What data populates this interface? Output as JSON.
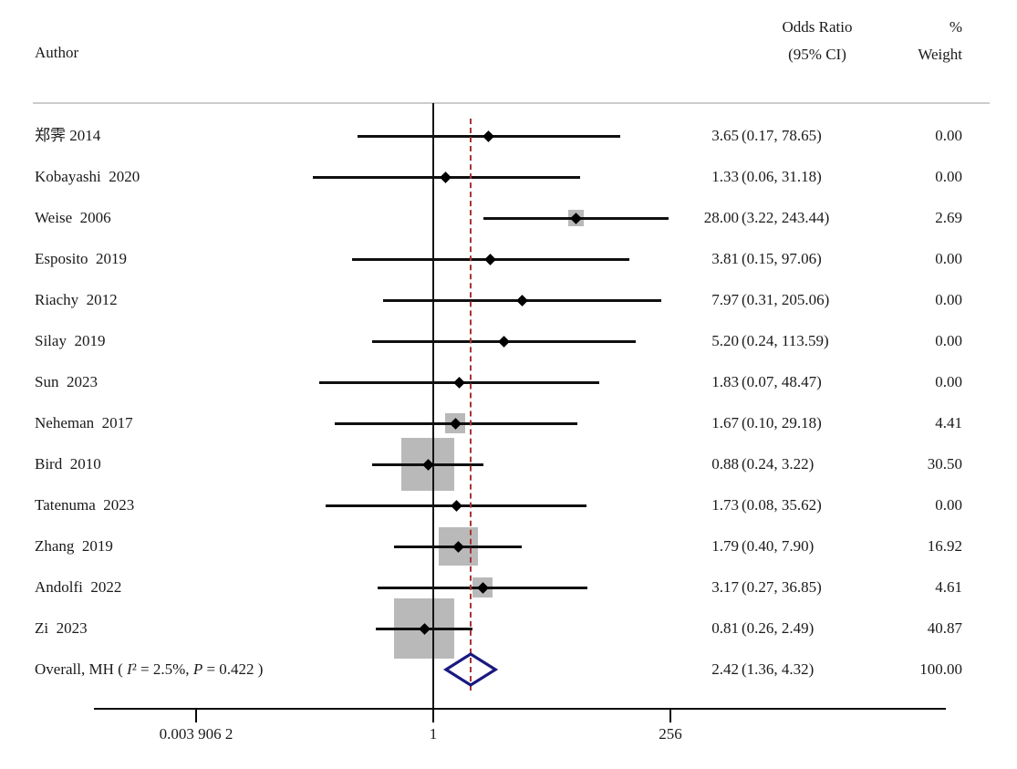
{
  "header": {
    "author": "Author",
    "or_line1": "Odds Ratio",
    "or_line2": "(95% CI)",
    "weight_line1": "%",
    "weight_line2": "Weight"
  },
  "chart_data": {
    "type": "forest",
    "effect_measure": "Odds Ratio",
    "x_axis": {
      "scale": "log2",
      "ticks": [
        {
          "label": "0.003 906 2",
          "value": 0.0039062
        },
        {
          "label": "1",
          "value": 1
        },
        {
          "label": "256",
          "value": 256
        }
      ]
    },
    "null_line_value": 1,
    "dashed_line_value": 2.42,
    "studies": [
      {
        "author": "郑霁 2014",
        "or": 3.65,
        "ci_low": 0.17,
        "ci_high": 78.65,
        "weight": 0,
        "or_text": "3.65",
        "ci_text": "(0.17, 78.65)",
        "weight_text": "0.00"
      },
      {
        "author": "Kobayashi  2020",
        "or": 1.33,
        "ci_low": 0.06,
        "ci_high": 31.18,
        "weight": 0,
        "or_text": "1.33",
        "ci_text": "(0.06, 31.18)",
        "weight_text": "0.00"
      },
      {
        "author": "Weise  2006",
        "or": 28.0,
        "ci_low": 3.22,
        "ci_high": 243.44,
        "weight": 2.69,
        "or_text": "28.00",
        "ci_text": "(3.22, 243.44)",
        "weight_text": "2.69"
      },
      {
        "author": "Esposito  2019",
        "or": 3.81,
        "ci_low": 0.15,
        "ci_high": 97.06,
        "weight": 0,
        "or_text": "3.81",
        "ci_text": "(0.15, 97.06)",
        "weight_text": "0.00"
      },
      {
        "author": "Riachy  2012",
        "or": 7.97,
        "ci_low": 0.31,
        "ci_high": 205.06,
        "weight": 0,
        "or_text": "7.97",
        "ci_text": "(0.31, 205.06)",
        "weight_text": "0.00"
      },
      {
        "author": "Silay  2019",
        "or": 5.2,
        "ci_low": 0.24,
        "ci_high": 113.59,
        "weight": 0,
        "or_text": "5.20",
        "ci_text": "(0.24, 113.59)",
        "weight_text": "0.00"
      },
      {
        "author": "Sun  2023",
        "or": 1.83,
        "ci_low": 0.07,
        "ci_high": 48.47,
        "weight": 0,
        "or_text": "1.83",
        "ci_text": "(0.07, 48.47)",
        "weight_text": "0.00"
      },
      {
        "author": "Neheman  2017",
        "or": 1.67,
        "ci_low": 0.1,
        "ci_high": 29.18,
        "weight": 4.41,
        "or_text": "1.67",
        "ci_text": "(0.10, 29.18)",
        "weight_text": "4.41"
      },
      {
        "author": "Bird  2010",
        "or": 0.88,
        "ci_low": 0.24,
        "ci_high": 3.22,
        "weight": 30.5,
        "or_text": "0.88",
        "ci_text": "(0.24, 3.22)",
        "weight_text": "30.50"
      },
      {
        "author": "Tatenuma  2023",
        "or": 1.73,
        "ci_low": 0.08,
        "ci_high": 35.62,
        "weight": 0,
        "or_text": "1.73",
        "ci_text": "(0.08, 35.62)",
        "weight_text": "0.00"
      },
      {
        "author": "Zhang  2019",
        "or": 1.79,
        "ci_low": 0.4,
        "ci_high": 7.9,
        "weight": 16.92,
        "or_text": "1.79",
        "ci_text": "(0.40, 7.90)",
        "weight_text": "16.92"
      },
      {
        "author": "Andolfi  2022",
        "or": 3.17,
        "ci_low": 0.27,
        "ci_high": 36.85,
        "weight": 4.61,
        "or_text": "3.17",
        "ci_text": "(0.27, 36.85)",
        "weight_text": "4.61"
      },
      {
        "author": "Zi  2023",
        "or": 0.81,
        "ci_low": 0.26,
        "ci_high": 2.49,
        "weight": 40.87,
        "or_text": "0.81",
        "ci_text": "(0.26, 2.49)",
        "weight_text": "40.87"
      }
    ],
    "overall": {
      "label_prefix": "Overall, MH ( ",
      "i2_italic": "I",
      "i2_rest": "² = 2.5%, ",
      "p_italic": "P",
      "p_rest": " = 0.422 )",
      "or": 2.42,
      "ci_low": 1.36,
      "ci_high": 4.32,
      "or_text": "2.42",
      "ci_text": "(1.36, 4.32)",
      "weight_text": "100.00"
    }
  },
  "colors": {
    "dashed_line": "#a93434",
    "diamond": "#191980",
    "weight_box": "#b9b9b9",
    "ci_line": "#101010",
    "separator": "#cccccc"
  }
}
